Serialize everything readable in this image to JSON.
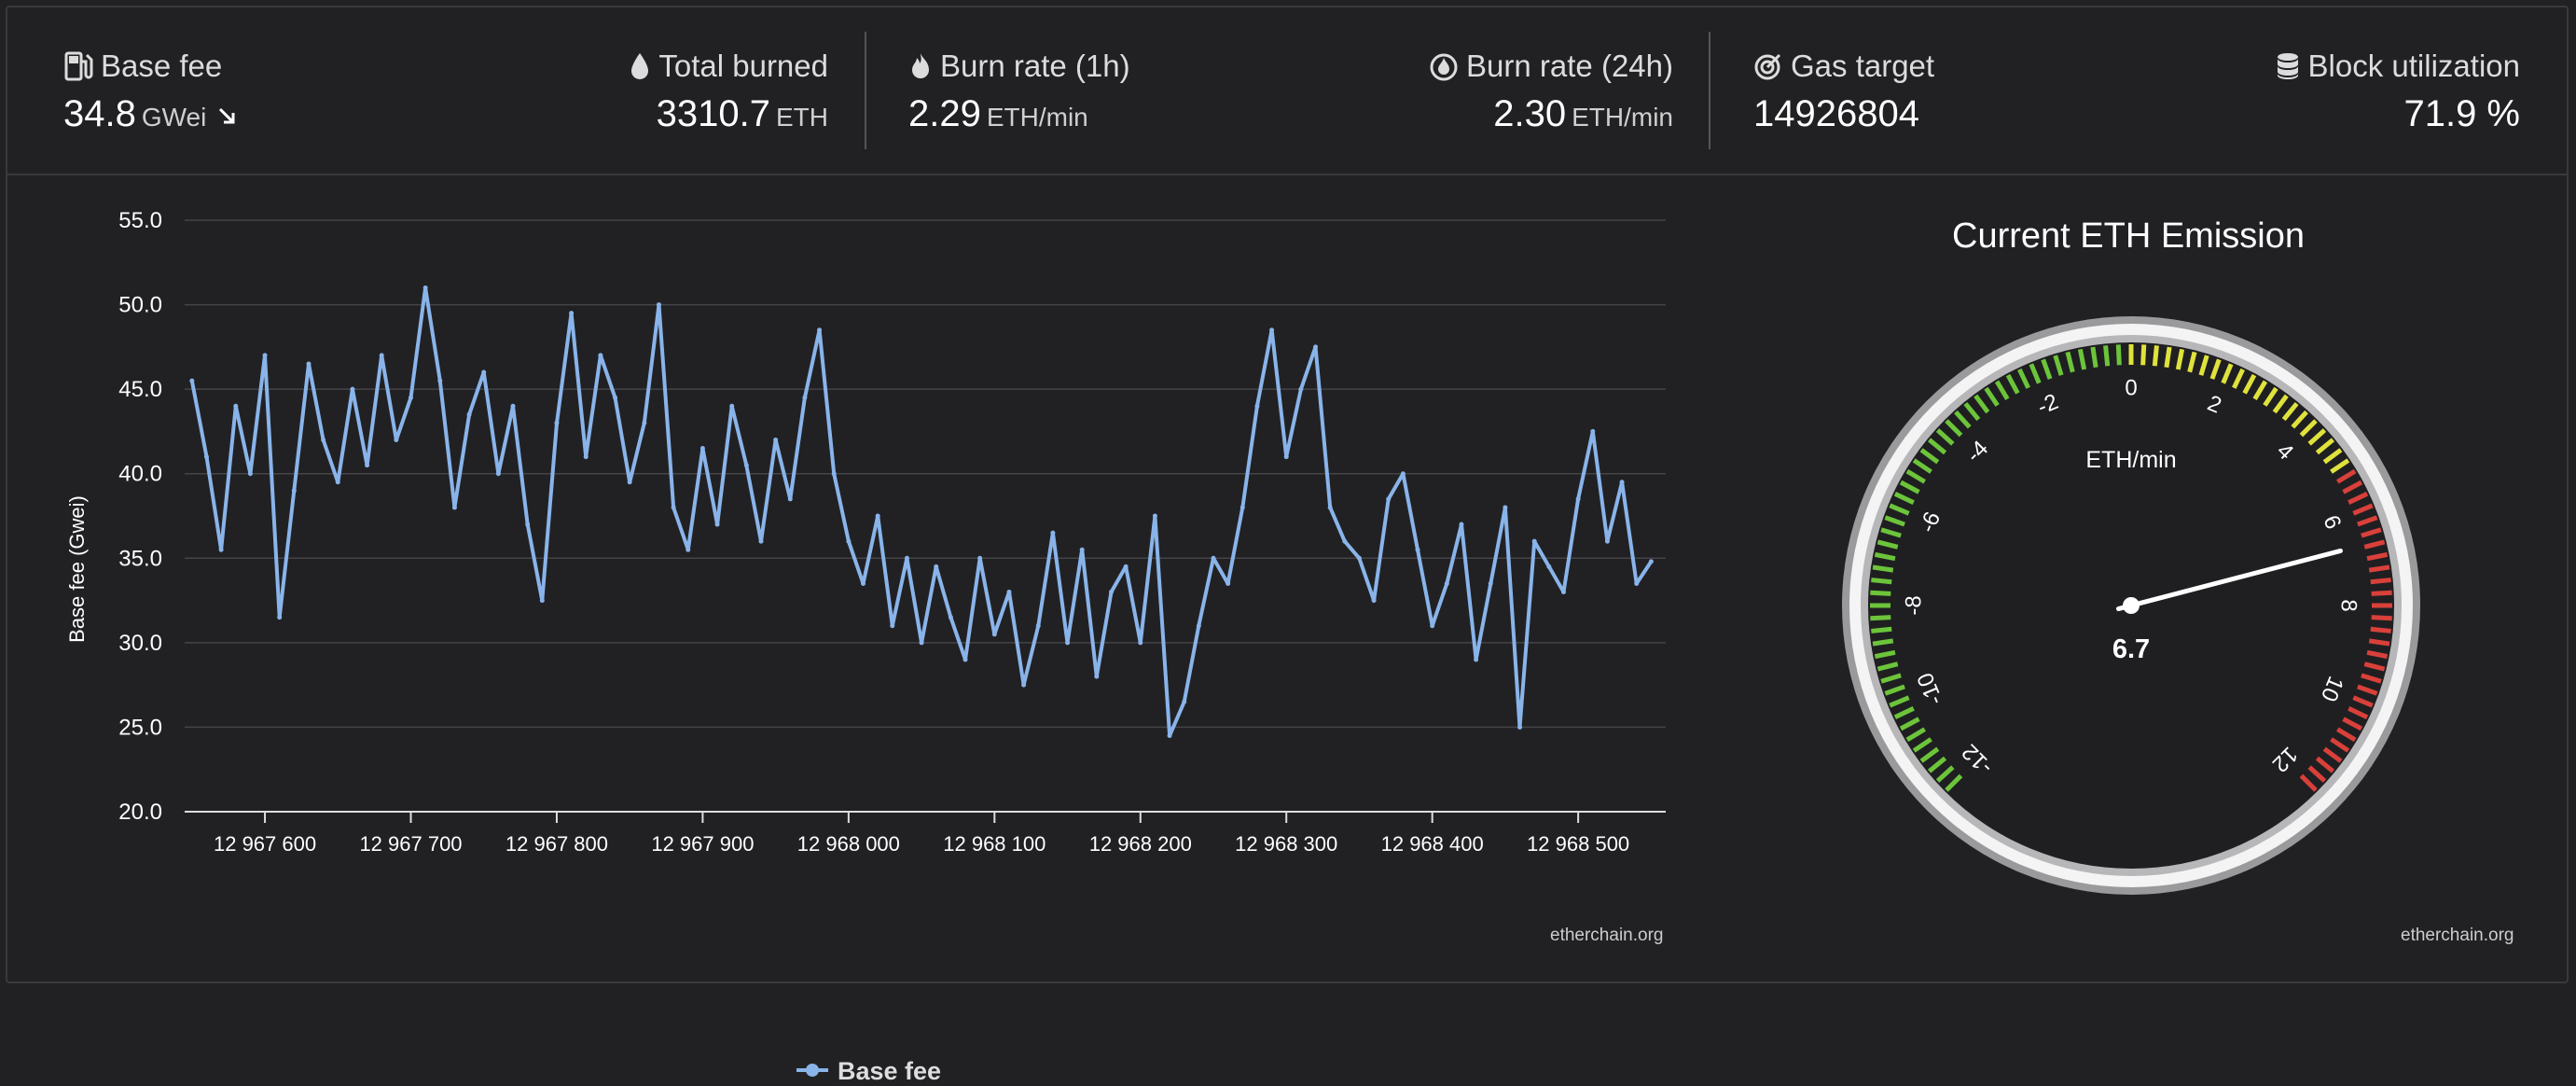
{
  "stats": [
    {
      "label": "Base fee",
      "value": "34.8",
      "unit": "GWei",
      "icon": "gas-pump-icon",
      "trend": "down-right-arrow-icon"
    },
    {
      "label": "Total burned",
      "value": "3310.7",
      "unit": "ETH",
      "icon": "drop-icon"
    },
    {
      "label": "Burn rate (1h)",
      "value": "2.29",
      "unit": "ETH/min",
      "icon": "flame-icon"
    },
    {
      "label": "Burn rate (24h)",
      "value": "2.30",
      "unit": "ETH/min",
      "icon": "flame-circle-icon"
    },
    {
      "label": "Gas target",
      "value": "14926804",
      "unit": "",
      "icon": "target-icon"
    },
    {
      "label": "Block utilization",
      "value": "71.9 %",
      "unit": "",
      "icon": "database-icon"
    }
  ],
  "chart_data": {
    "type": "line",
    "title": "",
    "xlabel": "",
    "ylabel": "Base fee (Gwei)",
    "ylim": [
      20,
      55
    ],
    "yticks": [
      "20.0",
      "25.0",
      "30.0",
      "35.0",
      "40.0",
      "45.0",
      "50.0",
      "55.0"
    ],
    "xlim": [
      12967545,
      12968560
    ],
    "xticks": [
      {
        "value": 12967600,
        "label": "12 967 600"
      },
      {
        "value": 12967700,
        "label": "12 967 700"
      },
      {
        "value": 12967800,
        "label": "12 967 800"
      },
      {
        "value": 12967900,
        "label": "12 967 900"
      },
      {
        "value": 12968000,
        "label": "12 968 000"
      },
      {
        "value": 12968100,
        "label": "12 968 100"
      },
      {
        "value": 12968200,
        "label": "12 968 200"
      },
      {
        "value": 12968300,
        "label": "12 968 300"
      },
      {
        "value": 12968400,
        "label": "12 968 400"
      },
      {
        "value": 12968500,
        "label": "12 968 500"
      }
    ],
    "series": [
      {
        "name": "Base fee",
        "color": "#89b4ea",
        "x": [
          12967550,
          12967560,
          12967570,
          12967580,
          12967590,
          12967600,
          12967610,
          12967620,
          12967630,
          12967640,
          12967650,
          12967660,
          12967670,
          12967680,
          12967690,
          12967700,
          12967710,
          12967720,
          12967730,
          12967740,
          12967750,
          12967760,
          12967770,
          12967780,
          12967790,
          12967800,
          12967810,
          12967820,
          12967830,
          12967840,
          12967850,
          12967860,
          12967870,
          12967880,
          12967890,
          12967900,
          12967910,
          12967920,
          12967930,
          12967940,
          12967950,
          12967960,
          12967970,
          12967980,
          12967990,
          12968000,
          12968010,
          12968020,
          12968030,
          12968040,
          12968050,
          12968060,
          12968070,
          12968080,
          12968090,
          12968100,
          12968110,
          12968120,
          12968130,
          12968140,
          12968150,
          12968160,
          12968170,
          12968180,
          12968190,
          12968200,
          12968210,
          12968220,
          12968230,
          12968240,
          12968250,
          12968260,
          12968270,
          12968280,
          12968290,
          12968300,
          12968310,
          12968320,
          12968330,
          12968340,
          12968350,
          12968360,
          12968370,
          12968380,
          12968390,
          12968400,
          12968410,
          12968420,
          12968430,
          12968440,
          12968450,
          12968460,
          12968470,
          12968480,
          12968490,
          12968500,
          12968510,
          12968520,
          12968530,
          12968540,
          12968550
        ],
        "values": [
          45.5,
          41.0,
          35.5,
          44.0,
          40.0,
          47.0,
          31.5,
          39.0,
          46.5,
          42.0,
          39.5,
          45.0,
          40.5,
          47.0,
          42.0,
          44.5,
          51.0,
          45.5,
          38.0,
          43.5,
          46.0,
          40.0,
          44.0,
          37.0,
          32.5,
          43.0,
          49.5,
          41.0,
          47.0,
          44.5,
          39.5,
          43.0,
          50.0,
          38.0,
          35.5,
          41.5,
          37.0,
          44.0,
          40.5,
          36.0,
          42.0,
          38.5,
          44.5,
          48.5,
          40.0,
          36.0,
          33.5,
          37.5,
          31.0,
          35.0,
          30.0,
          34.5,
          31.5,
          29.0,
          35.0,
          30.5,
          33.0,
          27.5,
          31.0,
          36.5,
          30.0,
          35.5,
          28.0,
          33.0,
          34.5,
          30.0,
          37.5,
          24.5,
          26.5,
          31.0,
          35.0,
          33.5,
          38.0,
          44.0,
          48.5,
          41.0,
          45.0,
          47.5,
          38.0,
          36.0,
          35.0,
          32.5,
          38.5,
          40.0,
          35.5,
          31.0,
          33.5,
          37.0,
          29.0,
          33.5,
          38.0,
          25.0,
          36.0,
          34.5,
          33.0,
          38.5,
          42.5,
          36.0,
          39.5,
          33.5,
          34.8
        ]
      }
    ]
  },
  "legend": {
    "label": "Base fee"
  },
  "chart_credit": "etherchain.org",
  "gauge": {
    "title": "Current ETH Emission",
    "unit": "ETH/min",
    "value": 6.7,
    "value_label": "6.7",
    "min": -12,
    "max": 12,
    "tick_labels": [
      "-12",
      "-10",
      "-8",
      "-6",
      "-4",
      "-2",
      "0",
      "2",
      "4",
      "6",
      "8",
      "10",
      "12"
    ],
    "colors": {
      "green": "#6cc43a",
      "yellow": "#dfe23c",
      "red": "#d9403a"
    },
    "credit": "etherchain.org"
  },
  "colors": {
    "background": "#212124",
    "line": "#89b4ea",
    "text": "#ffffff"
  }
}
